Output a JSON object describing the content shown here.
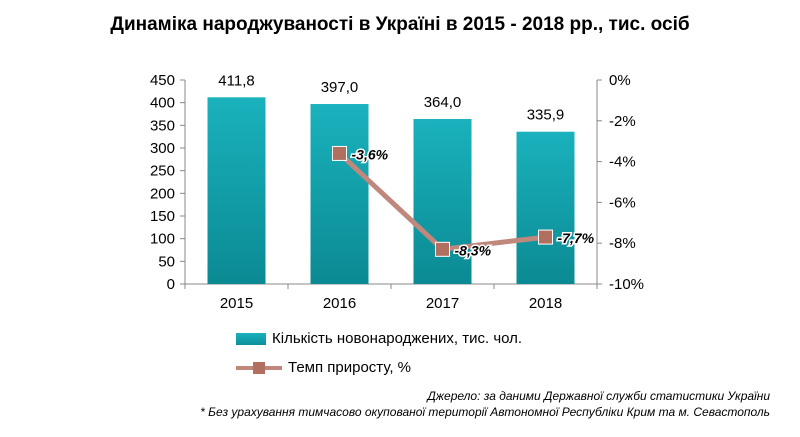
{
  "title": "Динаміка народжуваності в Україні в 2015 - 2018 рр., тис. осіб",
  "legend": {
    "bars": "Кількість новонароджених,  тис. чол.",
    "line": "Темп  приросту, %"
  },
  "notes": {
    "source": "Джерело: за даними Державної служби статистики України",
    "footnote": "* Без урахування тимчасово окупованої території Автономної Республіки Крим та м. Севастополь"
  },
  "colors": {
    "bars": "#12a2ad",
    "line": "#c0877c",
    "marker": "#b1705f"
  },
  "chart_data": {
    "type": "bar",
    "categories": [
      "2015",
      "2016",
      "2017",
      "2018"
    ],
    "series": [
      {
        "name": "Кількість новонароджених,  тис. чол.",
        "type": "bar",
        "axis": "left",
        "values": [
          411.8,
          397.0,
          364.0,
          335.9
        ],
        "labels": [
          "411,8",
          "397,0",
          "364,0",
          "335,9"
        ]
      },
      {
        "name": "Темп  приросту, %",
        "type": "line",
        "axis": "right",
        "x": [
          "2016",
          "2017",
          "2018"
        ],
        "values": [
          -3.6,
          -8.3,
          -7.7
        ],
        "labels": [
          "-3,6%",
          "-8,3%",
          "-7,7%"
        ]
      }
    ],
    "y_left": {
      "min": 0,
      "max": 450,
      "ticks": [
        "0",
        "50",
        "100",
        "150",
        "200",
        "250",
        "300",
        "350",
        "400",
        "450"
      ]
    },
    "y_right": {
      "min": -10,
      "max": 0,
      "ticks": [
        "0%",
        "-2%",
        "-4%",
        "-6%",
        "-8%",
        "-10%"
      ]
    },
    "grid": false,
    "legend_position": "bottom"
  }
}
